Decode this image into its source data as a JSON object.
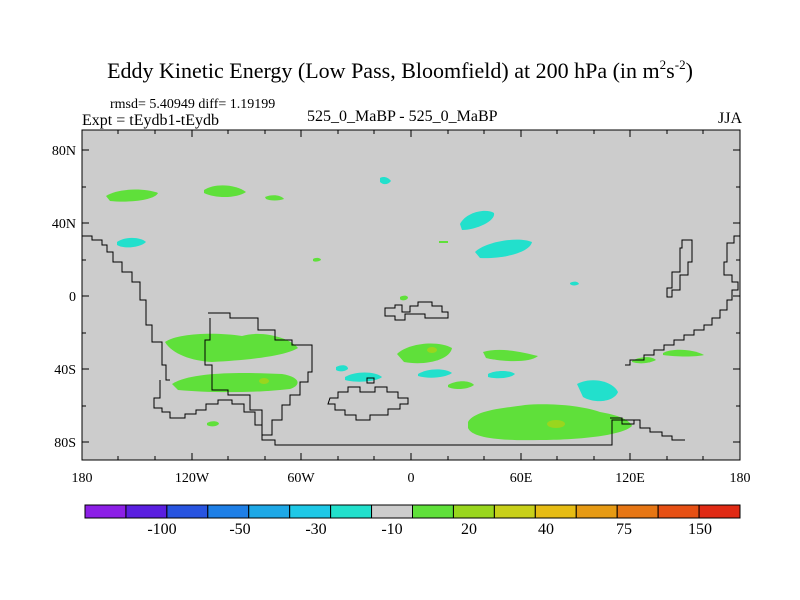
{
  "title": {
    "main": "Eddy Kinetic Energy (Low Pass, Bloomfield) at 200 hPa (in m",
    "sup1": "2",
    "mid": "s",
    "sup2": "-2",
    "end": ")"
  },
  "stats": "rmsd= 5.40949 diff= 1.19199",
  "expt": "Expt = tEydb1-tEydb",
  "center_label": "525_0_MaBP - 525_0_MaBP",
  "season": "JJA",
  "axes": {
    "lon_ticks": [
      "180",
      "120W",
      "60W",
      "0",
      "60E",
      "120E",
      "180"
    ],
    "lat_ticks": [
      "80N",
      "40N",
      "0",
      "40S",
      "80S"
    ]
  },
  "colorbar": {
    "colors": [
      "#8c1fe6",
      "#5a1fe0",
      "#2854e0",
      "#1e7fe6",
      "#1ea8e6",
      "#1ec8e6",
      "#22e0cc",
      "#cccccc",
      "#5fe03a",
      "#99d61e",
      "#c8d01a",
      "#e6bc14",
      "#e69a14",
      "#e67614",
      "#e65014",
      "#e02a14"
    ],
    "labels": [
      "-100",
      "-50",
      "-30",
      "-10",
      "20",
      "40",
      "75",
      "150"
    ]
  },
  "colors": {
    "background": "#cccccc",
    "green": "#5fe03a",
    "cyan": "#22e0cc",
    "yellow_green": "#99d61e",
    "coast": "#000000"
  }
}
